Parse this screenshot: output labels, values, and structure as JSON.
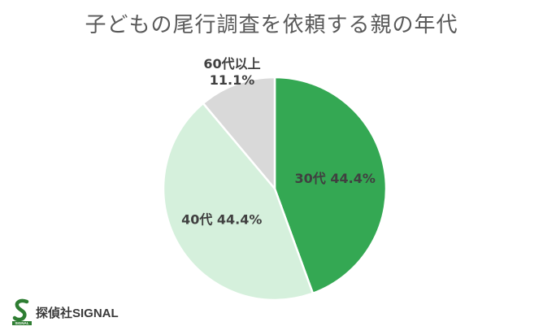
{
  "chart_data": {
    "type": "pie",
    "title": "子どもの尾行調査を依頼する親の年代",
    "categories": [
      "30代",
      "40代",
      "60代以上"
    ],
    "values": [
      44.4,
      44.4,
      11.1
    ],
    "labels": [
      "30代 44.4%",
      "40代 44.4%",
      "60代以上\n11.1%"
    ],
    "colors": [
      "#34a853",
      "#d5f0dc",
      "#d9d9d9"
    ],
    "start": "12 o'clock",
    "direction": "clockwise",
    "legend": "none"
  },
  "logo": {
    "name": "探偵社SIGNAL",
    "mark_text": "SIGNAL",
    "mark_color": "#2e7d32"
  }
}
